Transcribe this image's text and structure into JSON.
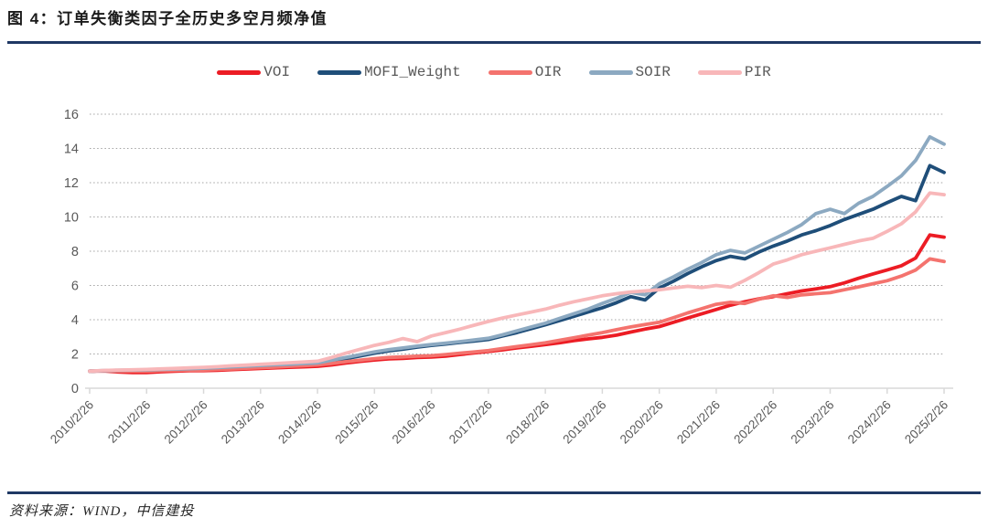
{
  "figure": {
    "title": "图 4：订单失衡类因子全历史多空月频净值",
    "source": "资料来源：WIND，中信建投"
  },
  "colors": {
    "accent_rule": "#1F3864",
    "title_text": "#1A1A1A",
    "axis_text": "#595959",
    "legend_text": "#595959",
    "grid": "#A3A3A3",
    "axis_line": "#D9D9D9",
    "background": "#FFFFFF"
  },
  "chart_data": {
    "type": "line",
    "title": "订单失衡类因子全历史多空月频净值",
    "xlabel": "",
    "ylabel": "",
    "ylim": [
      0,
      16
    ],
    "y_ticks": [
      0,
      2,
      4,
      6,
      8,
      10,
      12,
      14,
      16
    ],
    "grid": "horizontal-dotted",
    "legend_position": "top-center",
    "x_tick_labels": [
      "2010/2/26",
      "2011/2/26",
      "2012/2/26",
      "2013/2/26",
      "2014/2/26",
      "2015/2/26",
      "2016/2/26",
      "2017/2/26",
      "2018/2/26",
      "2019/2/26",
      "2020/2/26",
      "2021/2/26",
      "2022/2/26",
      "2023/2/26",
      "2024/2/26",
      "2025/2/26"
    ],
    "x_sampling": "quarterly samples from 2010/2/26 to 2025/2/26, 61 points per series",
    "series": [
      {
        "name": "VOI",
        "color": "#EC1C24",
        "values": [
          1.0,
          1.01,
          0.95,
          0.92,
          0.92,
          0.96,
          1.0,
          1.02,
          1.03,
          1.05,
          1.09,
          1.12,
          1.15,
          1.19,
          1.22,
          1.25,
          1.28,
          1.36,
          1.47,
          1.57,
          1.65,
          1.72,
          1.74,
          1.79,
          1.82,
          1.88,
          1.97,
          2.06,
          2.15,
          2.24,
          2.35,
          2.45,
          2.55,
          2.65,
          2.78,
          2.88,
          2.97,
          3.1,
          3.28,
          3.45,
          3.6,
          3.85,
          4.1,
          4.35,
          4.6,
          4.85,
          5.05,
          5.22,
          5.35,
          5.52,
          5.68,
          5.8,
          5.93,
          6.15,
          6.42,
          6.67,
          6.9,
          7.15,
          7.6,
          8.95,
          8.82
        ]
      },
      {
        "name": "MOFI_Weight",
        "color": "#1F4E79",
        "values": [
          1.0,
          1.02,
          1.03,
          1.04,
          1.05,
          1.07,
          1.09,
          1.1,
          1.12,
          1.16,
          1.19,
          1.23,
          1.27,
          1.31,
          1.34,
          1.38,
          1.42,
          1.57,
          1.73,
          1.89,
          2.05,
          2.18,
          2.28,
          2.4,
          2.5,
          2.58,
          2.67,
          2.76,
          2.85,
          3.05,
          3.25,
          3.48,
          3.7,
          3.95,
          4.2,
          4.45,
          4.7,
          5.0,
          5.35,
          5.15,
          5.85,
          6.25,
          6.7,
          7.1,
          7.45,
          7.7,
          7.55,
          7.95,
          8.3,
          8.6,
          8.95,
          9.2,
          9.5,
          9.85,
          10.15,
          10.45,
          10.83,
          11.2,
          10.95,
          13.0,
          12.6
        ]
      },
      {
        "name": "OIR",
        "color": "#F4736E",
        "values": [
          1.0,
          1.02,
          0.99,
          1.0,
          1.0,
          1.02,
          1.04,
          1.05,
          1.06,
          1.1,
          1.13,
          1.17,
          1.2,
          1.24,
          1.28,
          1.32,
          1.36,
          1.45,
          1.55,
          1.64,
          1.73,
          1.8,
          1.83,
          1.87,
          1.9,
          1.97,
          2.05,
          2.12,
          2.2,
          2.32,
          2.43,
          2.54,
          2.65,
          2.8,
          2.95,
          3.1,
          3.25,
          3.42,
          3.58,
          3.72,
          3.85,
          4.12,
          4.4,
          4.65,
          4.9,
          5.02,
          4.95,
          5.2,
          5.4,
          5.3,
          5.45,
          5.52,
          5.58,
          5.75,
          5.92,
          6.1,
          6.28,
          6.55,
          6.9,
          7.55,
          7.4
        ]
      },
      {
        "name": "SOIR",
        "color": "#8CA9C1",
        "values": [
          1.0,
          1.03,
          1.05,
          1.06,
          1.08,
          1.1,
          1.12,
          1.14,
          1.17,
          1.21,
          1.25,
          1.29,
          1.33,
          1.37,
          1.4,
          1.44,
          1.48,
          1.64,
          1.8,
          1.96,
          2.12,
          2.25,
          2.35,
          2.46,
          2.55,
          2.63,
          2.72,
          2.82,
          2.92,
          3.12,
          3.35,
          3.58,
          3.8,
          4.08,
          4.35,
          4.62,
          4.95,
          5.25,
          5.6,
          5.45,
          6.1,
          6.5,
          6.95,
          7.35,
          7.8,
          8.05,
          7.9,
          8.3,
          8.7,
          9.1,
          9.55,
          10.2,
          10.45,
          10.2,
          10.8,
          11.2,
          11.78,
          12.4,
          13.3,
          14.68,
          14.25
        ]
      },
      {
        "name": "PIR",
        "color": "#F8B7B9",
        "values": [
          1.0,
          1.04,
          1.06,
          1.08,
          1.1,
          1.13,
          1.16,
          1.19,
          1.22,
          1.26,
          1.31,
          1.35,
          1.4,
          1.44,
          1.49,
          1.53,
          1.58,
          1.8,
          2.05,
          2.28,
          2.5,
          2.68,
          2.9,
          2.72,
          3.05,
          3.25,
          3.45,
          3.68,
          3.9,
          4.1,
          4.28,
          4.45,
          4.62,
          4.85,
          5.05,
          5.22,
          5.4,
          5.52,
          5.62,
          5.68,
          5.75,
          5.85,
          5.95,
          5.88,
          6.0,
          5.9,
          6.3,
          6.75,
          7.25,
          7.5,
          7.8,
          8.0,
          8.2,
          8.4,
          8.6,
          8.75,
          9.16,
          9.6,
          10.3,
          11.4,
          11.3
        ]
      }
    ]
  }
}
